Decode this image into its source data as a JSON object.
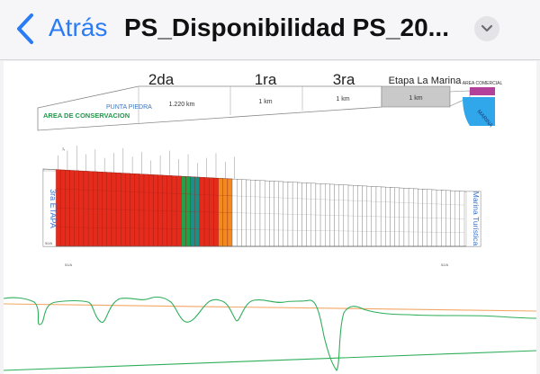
{
  "nav": {
    "back_label": "Atrás",
    "title": "PS_Disponibilidad PS_20...",
    "back_icon": "chevron-left-icon",
    "menu_icon": "chevron-down-icon",
    "accent_color": "#2a7bf6"
  },
  "plan": {
    "stages": {
      "segunda": "2da",
      "primera": "1ra",
      "tercera": "3ra",
      "marina": "Etapa La Marina"
    },
    "distances": {
      "segunda": "1.220 km",
      "primera": "1 km",
      "tercera": "1 km",
      "marina": "1 km"
    },
    "area_conservacion": "AREA DE CONSERVACION",
    "punta_piedra": "PUNTA PIEDRA",
    "area_comercial": "AREA COMERCIAL",
    "marina_label": "MARINA",
    "left_vertical": "3ra ETAPA",
    "right_vertical": "Marina Turística",
    "lot_colors": {
      "sold": "#e42b1c",
      "green": "#21a14a",
      "teal": "#1e8f86",
      "orange": "#f08a21",
      "available": "#ffffff"
    }
  }
}
